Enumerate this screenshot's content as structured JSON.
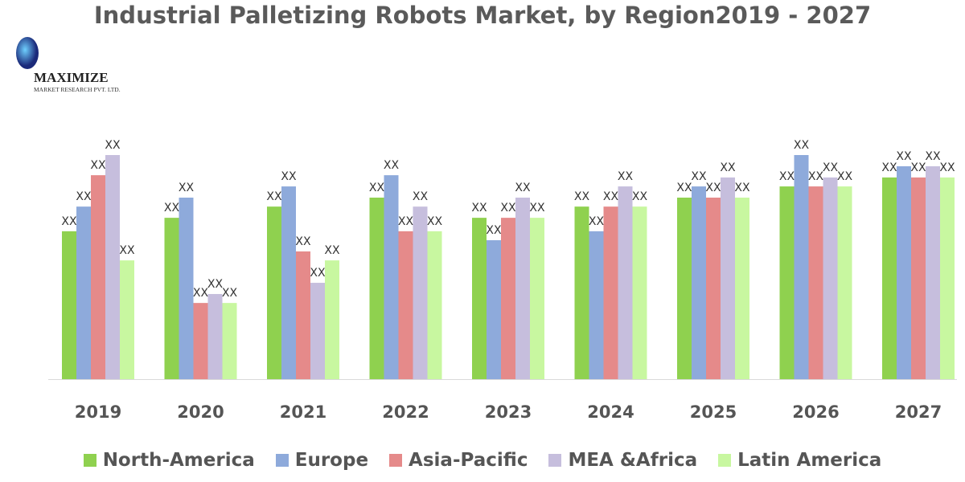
{
  "chart_data": {
    "type": "bar",
    "title": "Industrial Palletizing Robots Market, by Region2019 - 2027",
    "xlabel": "",
    "ylabel": "",
    "categories": [
      "2019",
      "2020",
      "2021",
      "2022",
      "2023",
      "2024",
      "2025",
      "2026",
      "2027"
    ],
    "ylim": [
      0,
      100
    ],
    "grid": false,
    "legend_position": "bottom",
    "data_label": "XX",
    "series": [
      {
        "name": "North-America",
        "color": "#8fd14f",
        "values": [
          66,
          72,
          77,
          81,
          72,
          77,
          81,
          86,
          90
        ]
      },
      {
        "name": "Europe",
        "color": "#8eaadb",
        "values": [
          77,
          81,
          86,
          91,
          62,
          66,
          86,
          100,
          95
        ]
      },
      {
        "name": "Asia-Pacific",
        "color": "#e58a8a",
        "values": [
          91,
          34,
          57,
          66,
          72,
          77,
          81,
          86,
          90
        ]
      },
      {
        "name": "MEA &Africa",
        "color": "#c6bedd",
        "values": [
          100,
          38,
          43,
          77,
          81,
          86,
          90,
          90,
          95
        ]
      },
      {
        "name": "Latin America",
        "color": "#c8f7a0",
        "values": [
          53,
          34,
          53,
          66,
          72,
          77,
          81,
          86,
          90
        ]
      }
    ]
  },
  "logo": {
    "name": "MAXIMIZE",
    "tagline": "MARKET RESEARCH PVT. LTD."
  }
}
